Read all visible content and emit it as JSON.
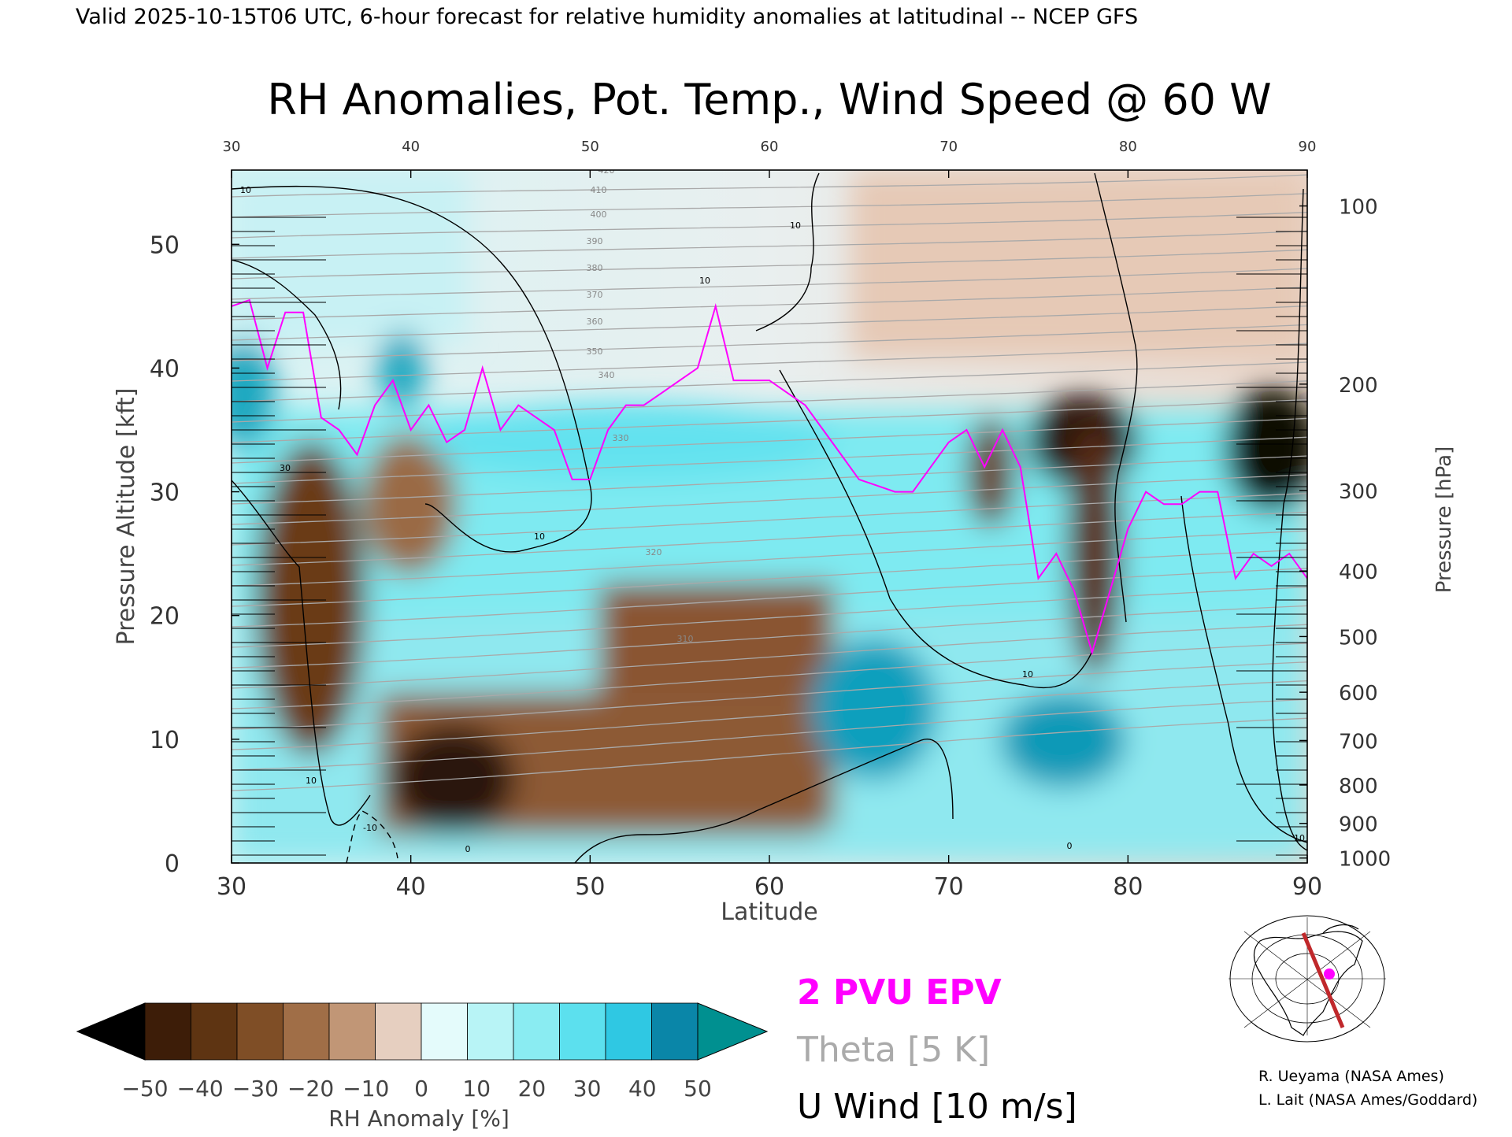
{
  "header": {
    "valid_line": "Valid 2025-10-15T06 UTC, 6-hour forecast for relative humidity anomalies at latitudinal -- NCEP GFS"
  },
  "chart_data": {
    "type": "heatmap",
    "title": "RH Anomalies, Pot. Temp., Wind Speed @ 60 W",
    "xlabel": "Latitude",
    "ylabel_left": "Pressure Altitude [kft]",
    "ylabel_right": "Pressure [hPa]",
    "xlim": [
      30,
      90
    ],
    "ylim": [
      0,
      56
    ],
    "x_ticks": [
      30,
      40,
      50,
      60,
      70,
      80,
      90
    ],
    "x_ticks_top": [
      30,
      40,
      50,
      60,
      70,
      80,
      90
    ],
    "y_ticks_left": [
      0,
      10,
      20,
      30,
      40,
      50
    ],
    "y_ticks_right": [
      {
        "label": "1000",
        "kft": 0.4
      },
      {
        "label": "900",
        "kft": 3.2
      },
      {
        "label": "800",
        "kft": 6.3
      },
      {
        "label": "700",
        "kft": 9.9
      },
      {
        "label": "600",
        "kft": 13.8
      },
      {
        "label": "500",
        "kft": 18.3
      },
      {
        "label": "400",
        "kft": 23.6
      },
      {
        "label": "300",
        "kft": 30.1
      },
      {
        "label": "200",
        "kft": 38.7
      },
      {
        "label": "100",
        "kft": 53.1
      }
    ],
    "grid": false,
    "colorbar": {
      "label": "RH Anomaly [%]",
      "tick_labels": [
        "-50",
        "-40",
        "-30",
        "-20",
        "-10",
        "0",
        "10",
        "20",
        "30",
        "40",
        "50"
      ],
      "colors": [
        "#000000",
        "#3d1d08",
        "#5e3412",
        "#7f4e26",
        "#a06e47",
        "#c19676",
        "#e6cfc0",
        "#e4fbfb",
        "#b8f4f6",
        "#8aecf2",
        "#5ce0ee",
        "#2fc8e3",
        "#0a86a8",
        "#009090"
      ]
    },
    "legend": {
      "placement": "bottom-center",
      "items": [
        {
          "label": "2 PVU EPV",
          "color": "#ff00ff"
        },
        {
          "label": "Theta [5 K]",
          "color": "#aaaaaa"
        },
        {
          "label": "U Wind [10 m/s]",
          "color": "#000000"
        }
      ]
    },
    "theta_contours": {
      "interval_K": 5,
      "labels": [
        "310",
        "320",
        "330",
        "340",
        "350",
        "360",
        "370",
        "380",
        "390",
        "400",
        "410",
        "420"
      ]
    },
    "wind_contour_labels": [
      "10",
      "10",
      "10",
      "10",
      "10",
      "10",
      "30",
      "0",
      "0",
      "10",
      "-10"
    ],
    "rh_features": [
      {
        "lat": 34,
        "kft": 23,
        "anomaly": -50
      },
      {
        "lat": 42,
        "kft": 6,
        "anomaly": -50
      },
      {
        "lat": 55,
        "kft": 17,
        "anomaly": -40
      },
      {
        "lat": 56,
        "kft": 10,
        "anomaly": -30
      },
      {
        "lat": 77,
        "kft": 34,
        "anomaly": -45
      },
      {
        "lat": 88,
        "kft": 35,
        "anomaly": -50
      },
      {
        "lat": 78,
        "kft": 25,
        "anomaly": -40
      },
      {
        "lat": 31,
        "kft": 38,
        "anomaly": 40
      },
      {
        "lat": 39,
        "kft": 38,
        "anomaly": 40
      },
      {
        "lat": 60,
        "kft": 33,
        "anomaly": 20
      },
      {
        "lat": 67,
        "kft": 12,
        "anomaly": 40
      },
      {
        "lat": 76,
        "kft": 10,
        "anomaly": 35
      }
    ],
    "pv_2pvu_kft": [
      [
        30,
        45
      ],
      [
        31,
        45.5
      ],
      [
        32,
        40
      ],
      [
        33,
        44.5
      ],
      [
        34,
        44.5
      ],
      [
        35,
        36
      ],
      [
        36,
        35
      ],
      [
        37,
        33
      ],
      [
        38,
        37
      ],
      [
        39,
        39
      ],
      [
        40,
        35
      ],
      [
        41,
        37
      ],
      [
        42,
        34
      ],
      [
        43,
        35
      ],
      [
        44,
        40
      ],
      [
        45,
        35
      ],
      [
        46,
        37
      ],
      [
        47,
        36
      ],
      [
        48,
        35
      ],
      [
        49,
        31
      ],
      [
        50,
        31
      ],
      [
        51,
        35
      ],
      [
        52,
        37
      ],
      [
        53,
        37
      ],
      [
        54,
        38
      ],
      [
        55,
        39
      ],
      [
        56,
        40
      ],
      [
        57,
        45
      ],
      [
        58,
        39
      ],
      [
        59,
        39
      ],
      [
        60,
        39
      ],
      [
        61,
        38
      ],
      [
        62,
        37
      ],
      [
        63,
        35
      ],
      [
        64,
        33
      ],
      [
        65,
        31
      ],
      [
        66,
        30.5
      ],
      [
        67,
        30
      ],
      [
        68,
        30
      ],
      [
        69,
        32
      ],
      [
        70,
        34
      ],
      [
        71,
        35
      ],
      [
        72,
        32
      ],
      [
        73,
        35
      ],
      [
        74,
        32
      ],
      [
        75,
        23
      ],
      [
        76,
        25
      ],
      [
        77,
        22
      ],
      [
        78,
        17
      ],
      [
        79,
        22
      ],
      [
        80,
        27
      ],
      [
        81,
        30
      ],
      [
        82,
        29
      ],
      [
        83,
        29
      ],
      [
        84,
        30
      ],
      [
        85,
        30
      ],
      [
        86,
        23
      ],
      [
        87,
        25
      ],
      [
        88,
        24
      ],
      [
        89,
        25
      ],
      [
        90,
        23
      ]
    ]
  },
  "inset_map": {
    "icon": "north-america-polar-map-icon"
  },
  "credits": [
    "R. Ueyama (NASA Ames)",
    "L. Lait (NASA Ames/Goddard)"
  ]
}
